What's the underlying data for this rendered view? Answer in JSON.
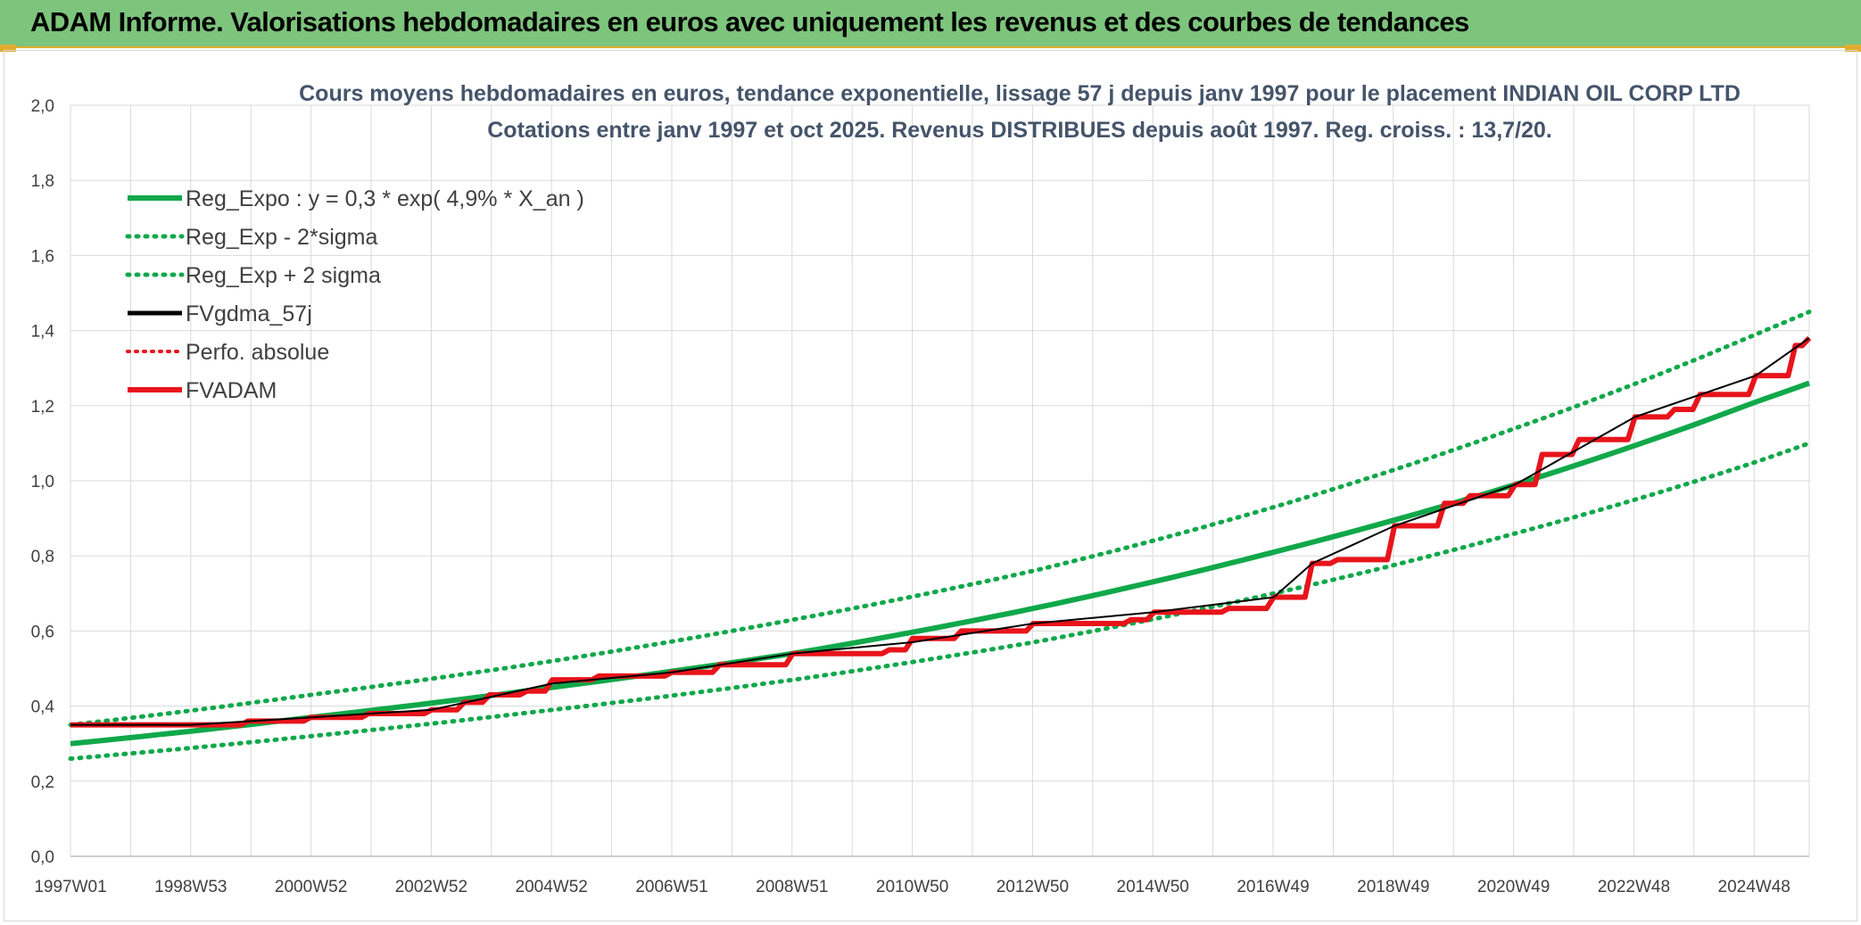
{
  "header": {
    "title": "ADAM Informe. Valorisations hebdomadaires en euros avec uniquement les revenus et des courbes de tendances"
  },
  "colors": {
    "banner": "#7dc47c",
    "trend": "#10a84a",
    "fvgdma": "#000000",
    "fvadam": "#e8141b",
    "perfo": "#e8141b",
    "grid": "#d9d9d9"
  },
  "chart_data": {
    "type": "line",
    "title": "Cours moyens hebdomadaires en euros, tendance exponentielle, lissage 57 j depuis janv 1997 pour le placement INDIAN OIL CORP LTD",
    "subtitle": "Cotations entre janv 1997 et oct 2025. Revenus DISTRIBUES depuis août 1997. Reg. croiss. : 13,7/20.",
    "x_ticks": [
      "1997W01",
      "1998W53",
      "2000W52",
      "2002W52",
      "2004W52",
      "2006W51",
      "2008W51",
      "2010W50",
      "2012W50",
      "2014W50",
      "2016W49",
      "2018W49",
      "2020W49",
      "2022W48",
      "2024W48"
    ],
    "x_range": [
      "1997W01",
      "2025W42"
    ],
    "y_ticks": [
      "0,0",
      "0,2",
      "0,4",
      "0,6",
      "0,8",
      "1,0",
      "1,2",
      "1,4",
      "1,6",
      "1,8",
      "2,0"
    ],
    "ylim": [
      0,
      2
    ],
    "grid": true,
    "legend_position": "top-left",
    "legend": [
      {
        "label": "Reg_Expo : y = 0,3 * exp( 4,9% *  X_an )",
        "style": "solid-green"
      },
      {
        "label": "Reg_Exp - 2*sigma",
        "style": "dotted-green"
      },
      {
        "label": "Reg_Exp + 2 sigma",
        "style": "dotted-green"
      },
      {
        "label": "FVgdma_57j",
        "style": "solid-black"
      },
      {
        "label": "Perfo. absolue",
        "style": "dotted-red"
      },
      {
        "label": "FVADAM",
        "style": "solid-red"
      }
    ],
    "series": [
      {
        "name": "Reg_Expo : y = 0,3 * exp( 4,9% *  X_an )",
        "x": [
          "1997W01",
          "2000W52",
          "2004W52",
          "2008W51",
          "2012W50",
          "2016W49",
          "2020W49",
          "2024W48",
          "2025W42"
        ],
        "values": [
          0.3,
          0.37,
          0.45,
          0.54,
          0.66,
          0.81,
          0.99,
          1.21,
          1.26
        ]
      },
      {
        "name": "Reg_Exp - 2*sigma",
        "x": [
          "1997W01",
          "2000W52",
          "2004W52",
          "2008W51",
          "2012W50",
          "2016W49",
          "2020W49",
          "2024W48",
          "2025W42"
        ],
        "values": [
          0.26,
          0.32,
          0.39,
          0.47,
          0.57,
          0.7,
          0.86,
          1.05,
          1.1
        ]
      },
      {
        "name": "Reg_Exp + 2 sigma",
        "x": [
          "1997W01",
          "2000W52",
          "2004W52",
          "2008W51",
          "2012W50",
          "2016W49",
          "2020W49",
          "2024W48",
          "2025W42"
        ],
        "values": [
          0.35,
          0.43,
          0.52,
          0.63,
          0.76,
          0.93,
          1.14,
          1.39,
          1.45
        ]
      },
      {
        "name": "FVADAM",
        "x": [
          "1997W01",
          "1998W53",
          "1999W50",
          "2000W52",
          "2001W50",
          "2002W52",
          "2003W28",
          "2003W50",
          "2004W30",
          "2004W52",
          "2005W40",
          "2006W51",
          "2007W40",
          "2008W51",
          "2009W40",
          "2010W30",
          "2010W50",
          "2011W40",
          "2012W50",
          "2013W40",
          "2014W30",
          "2014W50",
          "2015W40",
          "2016W10",
          "2016W49",
          "2017W30",
          "2017W52",
          "2018W49",
          "2019W40",
          "2020W10",
          "2020W49",
          "2021W20",
          "2021W52",
          "2022W48",
          "2023W30",
          "2023W52",
          "2024W48",
          "2025W30",
          "2025W42"
        ],
        "values": [
          0.35,
          0.35,
          0.36,
          0.37,
          0.38,
          0.39,
          0.41,
          0.43,
          0.44,
          0.47,
          0.48,
          0.49,
          0.51,
          0.54,
          0.54,
          0.55,
          0.58,
          0.6,
          0.62,
          0.62,
          0.63,
          0.65,
          0.65,
          0.66,
          0.69,
          0.78,
          0.79,
          0.88,
          0.94,
          0.96,
          0.99,
          1.07,
          1.11,
          1.17,
          1.19,
          1.23,
          1.28,
          1.36,
          1.38
        ]
      },
      {
        "name": "FVgdma_57j",
        "x": [
          "1997W01",
          "1998W53",
          "2000W52",
          "2002W52",
          "2004W52",
          "2006W51",
          "2008W51",
          "2010W50",
          "2012W50",
          "2014W50",
          "2016W49",
          "2017W30",
          "2018W49",
          "2020W49",
          "2022W48",
          "2024W48",
          "2025W42"
        ],
        "values": [
          0.35,
          0.35,
          0.37,
          0.39,
          0.46,
          0.49,
          0.54,
          0.57,
          0.62,
          0.65,
          0.69,
          0.78,
          0.88,
          0.99,
          1.17,
          1.28,
          1.38
        ]
      }
    ]
  }
}
